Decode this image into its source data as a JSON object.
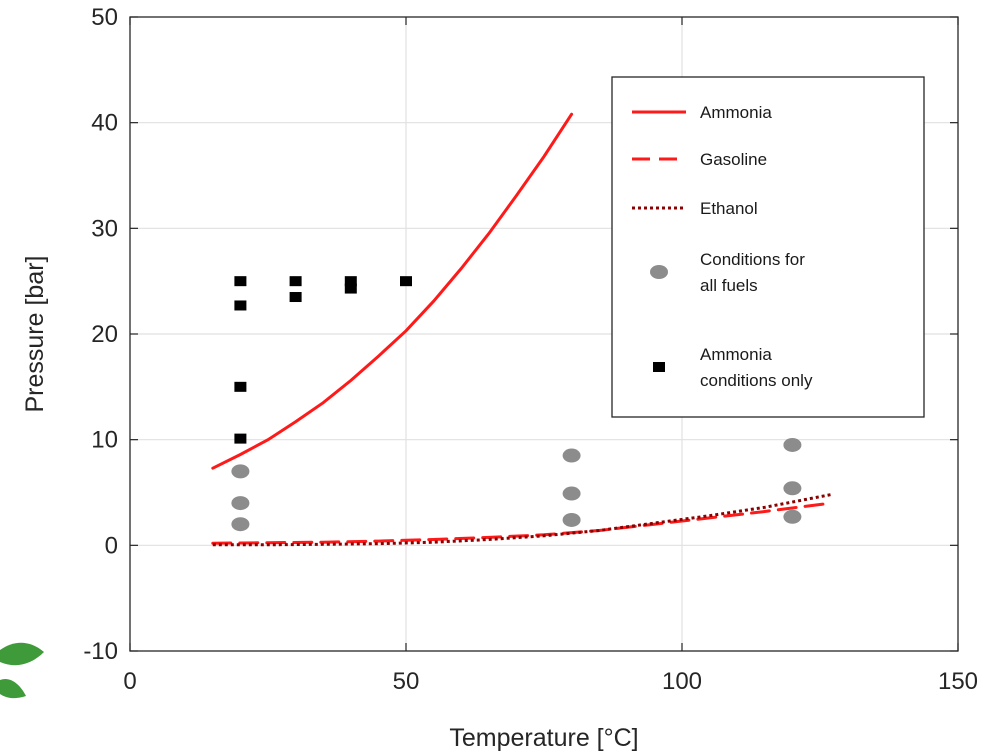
{
  "chart_data": {
    "type": "line",
    "xlabel": "Temperature [°C]",
    "ylabel": "Pressure [bar]",
    "xlim": [
      0,
      150
    ],
    "ylim": [
      -10,
      50
    ],
    "xticks": [
      0,
      50,
      100,
      150
    ],
    "yticks": [
      -10,
      0,
      10,
      20,
      30,
      40,
      50
    ],
    "grid": true,
    "legend_position": "top-right",
    "series": [
      {
        "name": "Ammonia",
        "kind": "line",
        "style": "solid",
        "color": "#ff1a1a",
        "x": [
          15,
          20,
          25,
          30,
          35,
          40,
          45,
          50,
          55,
          60,
          65,
          70,
          75,
          80
        ],
        "y": [
          7.3,
          8.6,
          10.0,
          11.7,
          13.5,
          15.6,
          17.9,
          20.3,
          23.1,
          26.2,
          29.5,
          33.1,
          36.8,
          40.8
        ]
      },
      {
        "name": "Gasoline",
        "kind": "line",
        "style": "dashed",
        "color": "#ff1a1a",
        "x": [
          15,
          25,
          35,
          45,
          55,
          65,
          75,
          85,
          95,
          105,
          115,
          127
        ],
        "y": [
          0.2,
          0.25,
          0.3,
          0.4,
          0.55,
          0.75,
          1.0,
          1.4,
          2.0,
          2.6,
          3.2,
          4.0
        ]
      },
      {
        "name": "Ethanol",
        "kind": "line",
        "style": "dotted",
        "color": "#8b0000",
        "x": [
          15,
          25,
          35,
          45,
          55,
          65,
          75,
          85,
          95,
          105,
          115,
          127
        ],
        "y": [
          0.05,
          0.05,
          0.1,
          0.15,
          0.3,
          0.55,
          0.9,
          1.4,
          2.1,
          2.8,
          3.6,
          4.8
        ]
      },
      {
        "name": "Conditions for all fuels",
        "kind": "scatter",
        "marker": "circle",
        "color": "#8c8c8c",
        "x": [
          20,
          20,
          20,
          80,
          80,
          80,
          120,
          120,
          120
        ],
        "y": [
          7,
          4,
          2,
          8.5,
          4.9,
          2.4,
          9.5,
          5.4,
          2.7
        ]
      },
      {
        "name": "Ammonia conditions only",
        "kind": "scatter",
        "marker": "square",
        "color": "#000000",
        "x": [
          20,
          20,
          20,
          20,
          30,
          30,
          40,
          40,
          50
        ],
        "y": [
          25,
          22.7,
          15,
          10.1,
          25,
          23.5,
          25,
          24.3,
          25
        ]
      }
    ],
    "legend": [
      {
        "label": "Ammonia",
        "kind": "line",
        "style": "solid",
        "color": "#ff1a1a"
      },
      {
        "label": "Gasoline",
        "kind": "line",
        "style": "dashed",
        "color": "#ff1a1a"
      },
      {
        "label": "Ethanol",
        "kind": "line",
        "style": "dotted",
        "color": "#8b0000"
      },
      {
        "label": [
          "Conditions for",
          "all fuels"
        ],
        "kind": "circle",
        "color": "#8c8c8c"
      },
      {
        "label": [
          "Ammonia",
          "conditions only"
        ],
        "kind": "square",
        "color": "#000000"
      }
    ]
  },
  "colors": {
    "axis": "#262626",
    "grid": "#e1e1e1",
    "background": "#ffffff",
    "logo_leaf": "#3f9b3a"
  },
  "decorations": {
    "corner_logo": "green-leaf-logo-fragment"
  }
}
